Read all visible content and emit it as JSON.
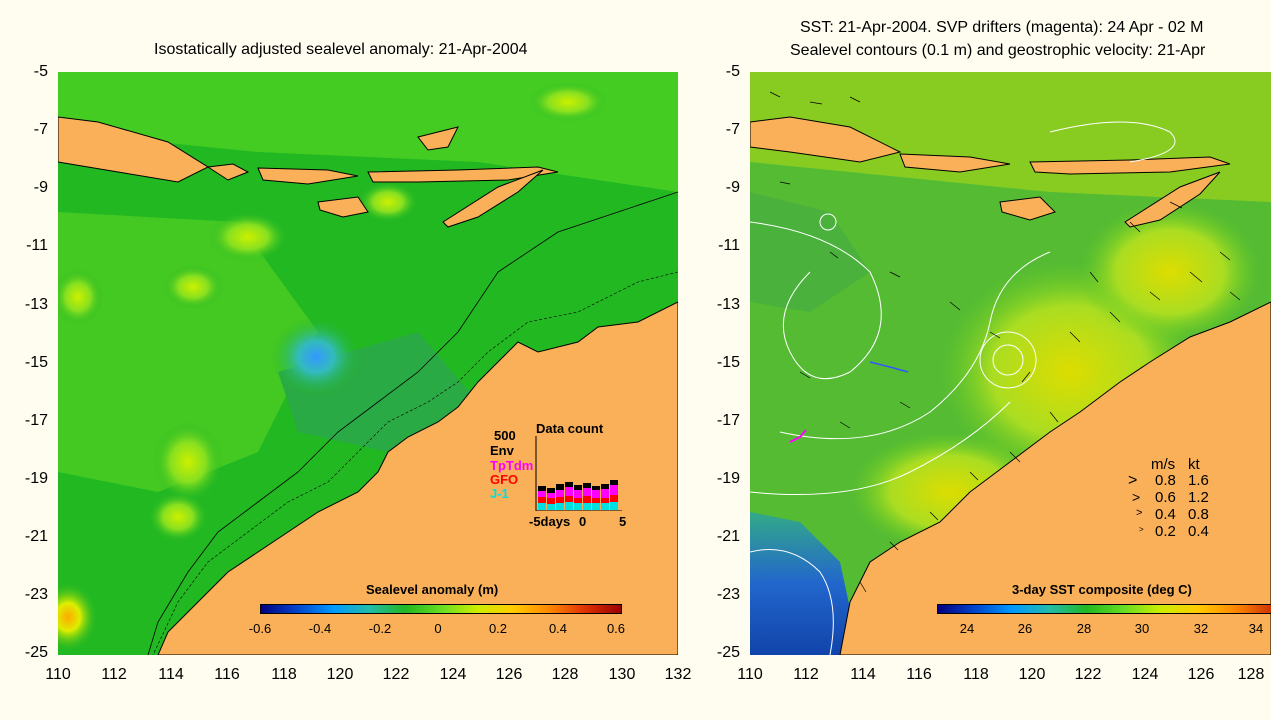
{
  "left_panel": {
    "title": "Isostatically adjusted sealevel anomaly: 21-Apr-2004",
    "colorbar": {
      "title": "Sealevel anomaly (m)",
      "labels": [
        "-0.6",
        "-0.4",
        "-0.2",
        "0",
        "0.2",
        "0.4",
        "0.6"
      ]
    },
    "x_ticks": [
      "110",
      "112",
      "114",
      "116",
      "118",
      "120",
      "122",
      "124",
      "126",
      "128",
      "130",
      "132"
    ],
    "y_ticks": [
      "-5",
      "-7",
      "-9",
      "-11",
      "-13",
      "-15",
      "-17",
      "-19",
      "-21",
      "-23",
      "-25"
    ],
    "data_count": {
      "title": "Data count",
      "scale_label": "500",
      "missions": [
        {
          "name": "Env",
          "color": "#000000"
        },
        {
          "name": "TpTdm",
          "color": "#ff00ff"
        },
        {
          "name": "GFO",
          "color": "#ff0000"
        },
        {
          "name": "J-1",
          "color": "#00e0e0"
        }
      ],
      "axis_labels": [
        "-5days",
        "0",
        "5"
      ]
    }
  },
  "right_panel": {
    "title_line1": "SST: 21-Apr-2004. SVP drifters (magenta): 24 Apr - 02 M",
    "title_line2": "Sealevel contours (0.1 m) and geostrophic velocity: 21-Apr",
    "colorbar": {
      "title": "3-day SST composite (deg C)",
      "labels": [
        "24",
        "26",
        "28",
        "30",
        "32",
        "34"
      ]
    },
    "x_ticks": [
      "110",
      "112",
      "114",
      "116",
      "118",
      "120",
      "122",
      "124",
      "126",
      "128"
    ],
    "y_ticks": [
      "-5",
      "-7",
      "-9",
      "-11",
      "-13",
      "-15",
      "-17",
      "-19",
      "-21",
      "-23",
      "-25"
    ],
    "velocity_legend": {
      "header_ms": "m/s",
      "header_kt": "kt",
      "rows": [
        {
          "ms": "0.8",
          "kt": "1.6"
        },
        {
          "ms": "0.6",
          "kt": "1.2"
        },
        {
          "ms": "0.4",
          "kt": "0.8"
        },
        {
          "ms": "0.2",
          "kt": "0.4"
        }
      ]
    }
  },
  "colors": {
    "land": "#f9b058",
    "ocean_green": "#22b822",
    "light_green": "#66dd22",
    "yellow_green": "#aaee00",
    "cyan": "#33ccaa",
    "background": "#fffdf0"
  }
}
